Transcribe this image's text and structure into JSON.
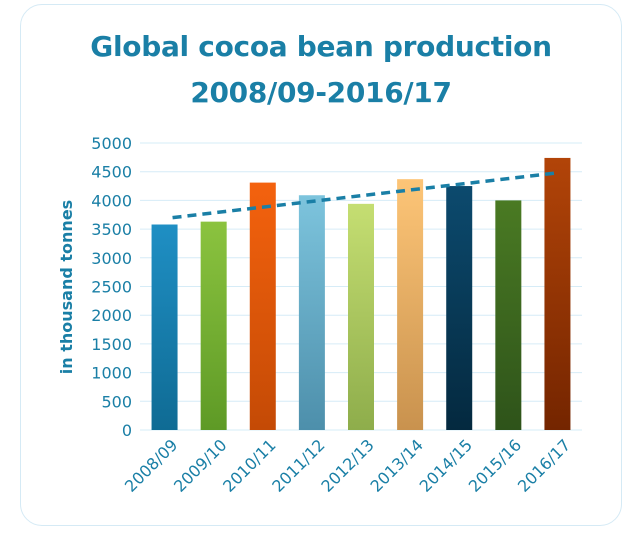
{
  "chart_data": {
    "type": "bar",
    "title_line1": "Global cocoa bean production",
    "title_line2": "2008/09-2016/17",
    "xlabel": "",
    "ylabel": "in thousand tonnes",
    "ylim": [
      0,
      5000
    ],
    "yticks": [
      "0",
      "500",
      "1000",
      "1500",
      "2000",
      "2500",
      "3000",
      "3500",
      "4000",
      "4500",
      "5000"
    ],
    "categories": [
      "2008/09",
      "2009/10",
      "2010/11",
      "2011/12",
      "2012/13",
      "2013/14",
      "2014/15",
      "2015/16",
      "2016/17"
    ],
    "values": [
      3580,
      3630,
      4310,
      4090,
      3940,
      4370,
      4250,
      4000,
      4740
    ],
    "bar_colors_top": [
      "#1f8fc4",
      "#8bc33f",
      "#f4620e",
      "#7dc4dd",
      "#c5de72",
      "#fdc577",
      "#0c4a6e",
      "#4a7a23",
      "#b24408"
    ],
    "bar_colors_bottom": [
      "#0f6b94",
      "#5e9a26",
      "#c44a05",
      "#4d8fab",
      "#8ead4b",
      "#c9924e",
      "#04293f",
      "#2e531a",
      "#742500"
    ],
    "trendline": {
      "style": "dashed",
      "color": "#1a7fa6",
      "start": 3700,
      "end": 4480
    },
    "grid": true,
    "legend": "none"
  }
}
